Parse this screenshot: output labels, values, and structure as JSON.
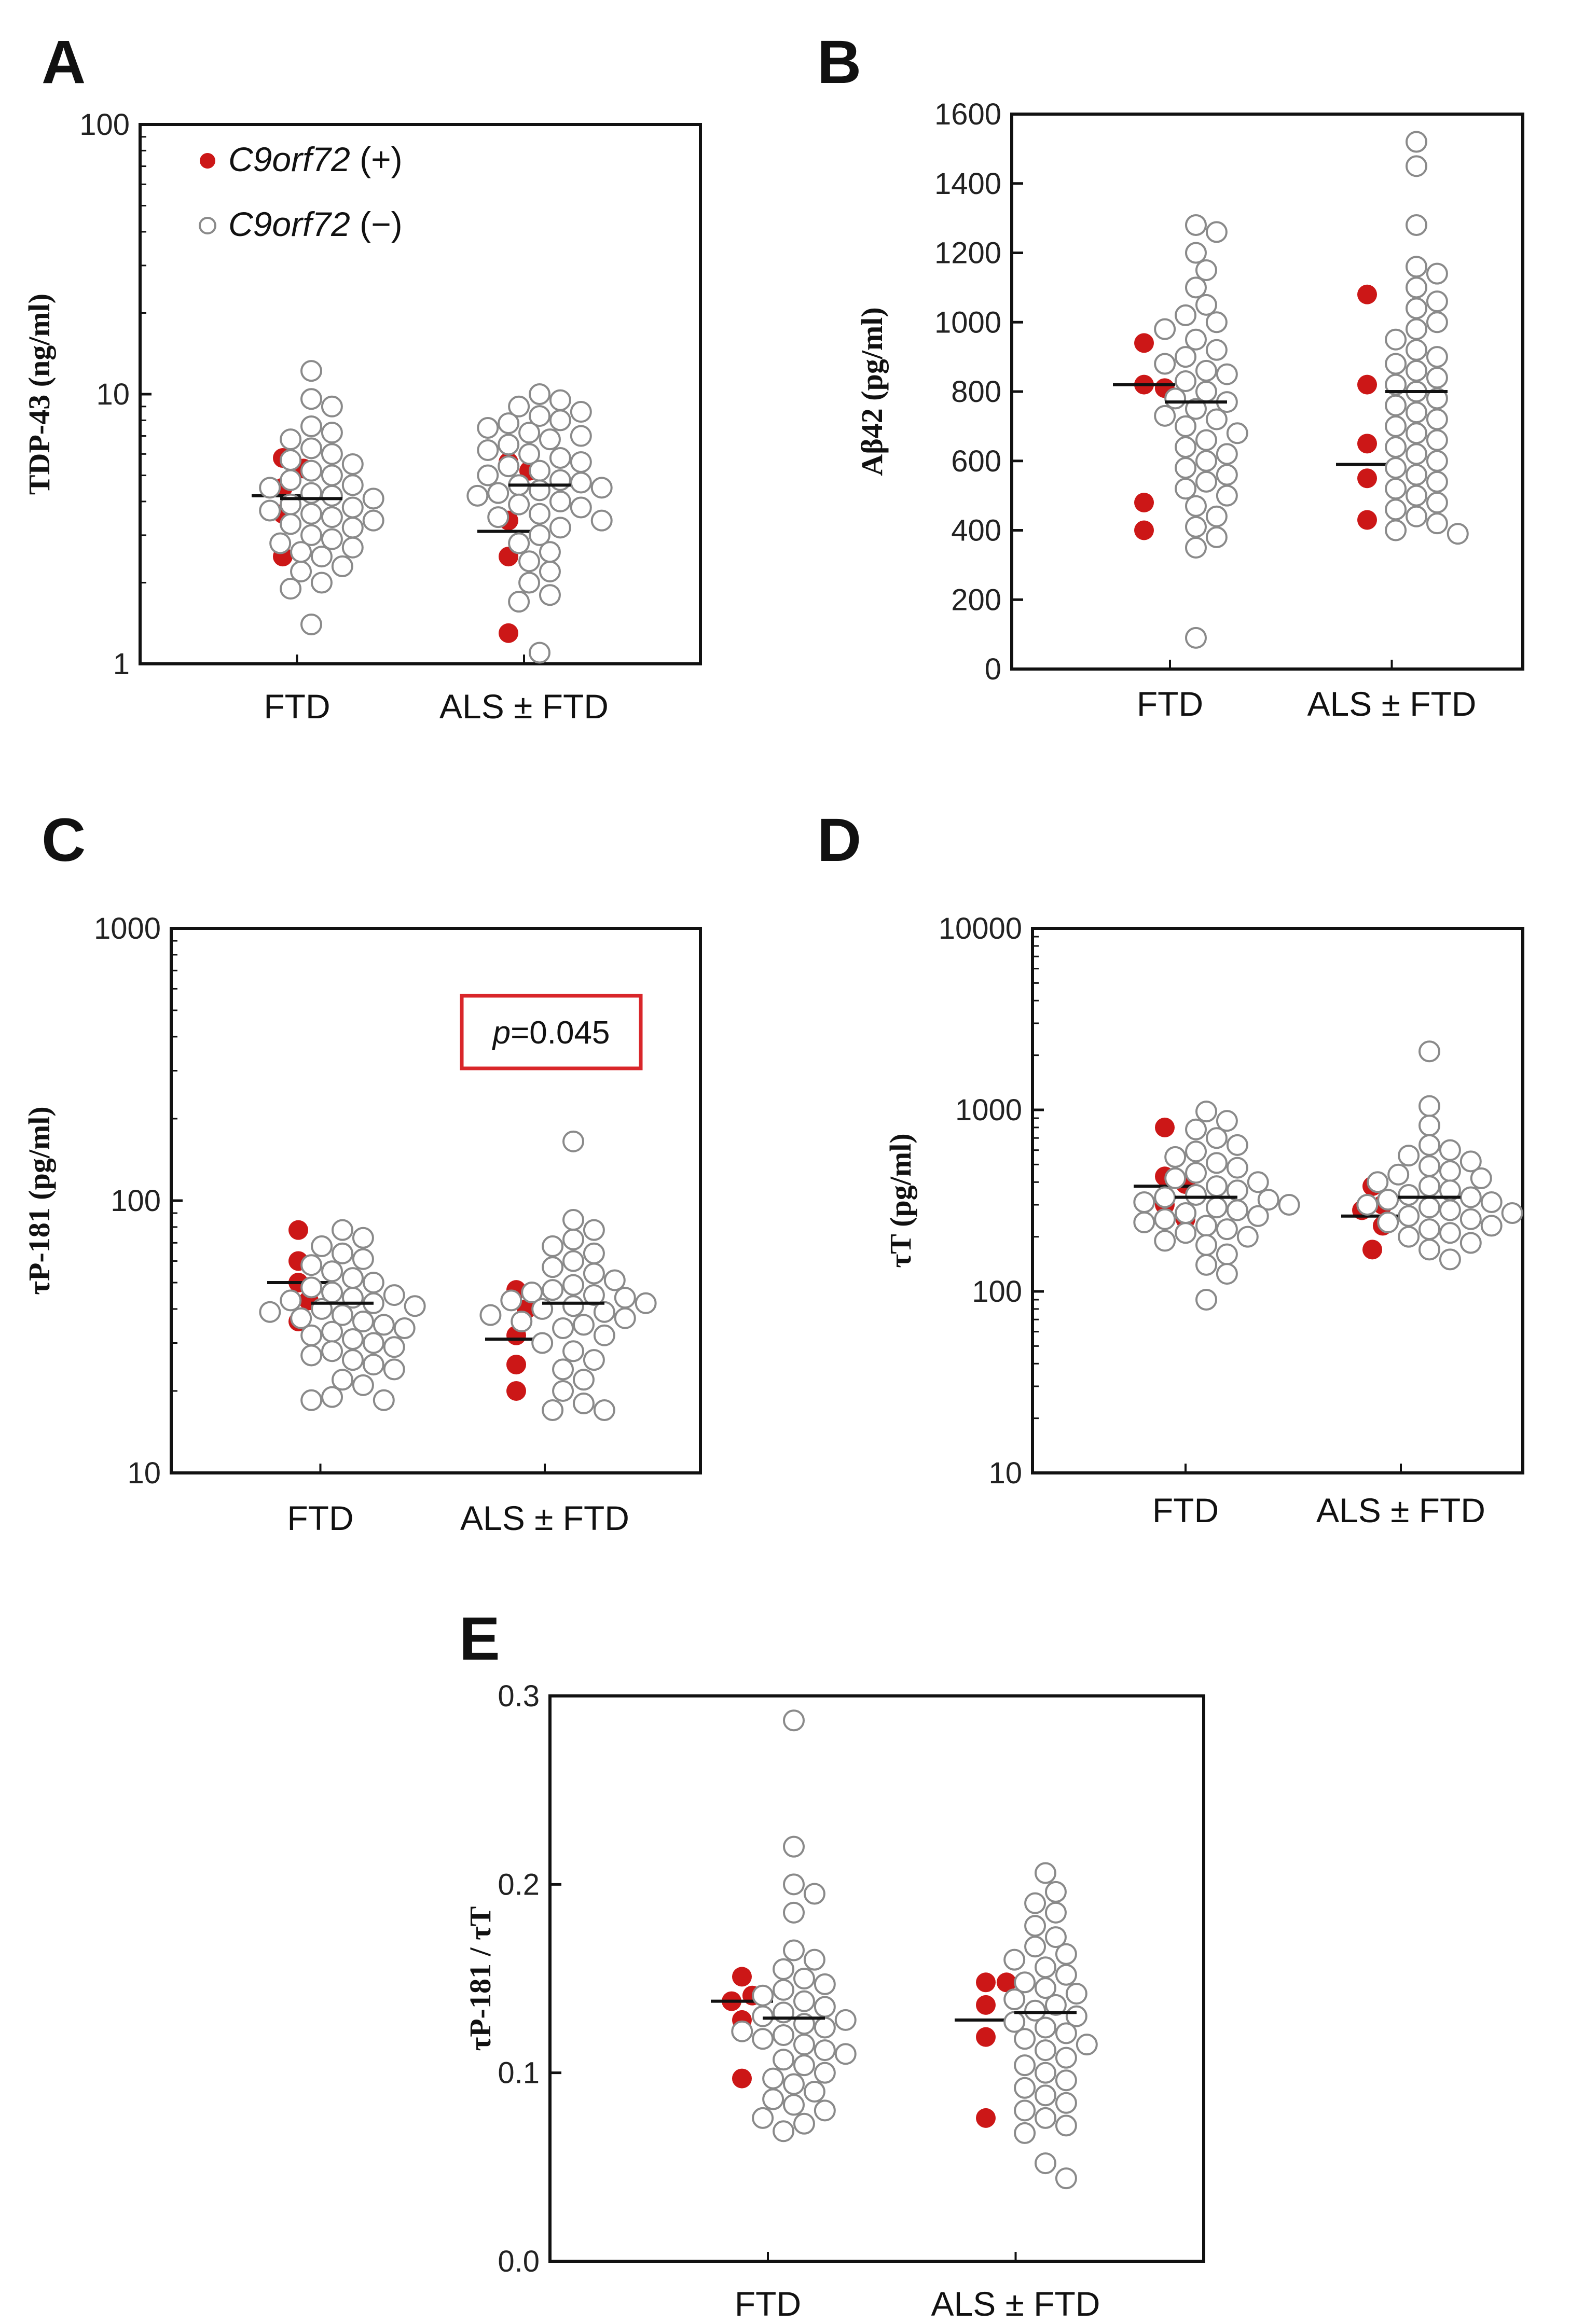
{
  "colors": {
    "positive": "#cc1717",
    "negative_fill": "#ffffff",
    "negative_stroke": "#8a8a8a",
    "median_line": "#111111",
    "p_box": "#d9262a"
  },
  "legend": {
    "items": [
      {
        "gene": "C9orf72",
        "sign": " (+)",
        "marker": "filled-red-dot"
      },
      {
        "gene": "C9orf72",
        "sign": " (−)",
        "marker": "open-gray-circle"
      }
    ]
  },
  "chart_data": [
    {
      "panel": "A",
      "type": "scatter",
      "ylabel": "TDP-43 (ng/ml)",
      "yscale": "log",
      "ylim": [
        1,
        100
      ],
      "yticks": [
        1,
        10,
        100
      ],
      "ytick_labels": [
        "1",
        "10",
        "100"
      ],
      "categories": [
        "FTD",
        "ALS ± FTD"
      ],
      "series": [
        {
          "name": "C9orf72 (+)",
          "values": [
            [
              5.8,
              5.3,
              4.5,
              3.6,
              2.5
            ],
            [
              5.6,
              5.2,
              3.4,
              2.5,
              1.3
            ]
          ],
          "medians": [
            4.2,
            3.1
          ]
        },
        {
          "name": "C9orf72 (−)",
          "values": [
            [
              12.2,
              9.6,
              9.0,
              7.6,
              7.2,
              6.8,
              6.3,
              6.0,
              5.7,
              5.5,
              5.2,
              5.0,
              4.8,
              4.6,
              4.5,
              4.3,
              4.2,
              4.1,
              3.9,
              3.8,
              3.7,
              3.6,
              3.5,
              3.4,
              3.3,
              3.2,
              3.0,
              2.9,
              2.8,
              2.7,
              2.6,
              2.5,
              2.3,
              2.2,
              2.0,
              1.9,
              1.4
            ],
            [
              10.0,
              9.5,
              9.0,
              8.6,
              8.3,
              8.0,
              7.8,
              7.5,
              7.2,
              7.0,
              6.8,
              6.5,
              6.2,
              6.0,
              5.8,
              5.6,
              5.4,
              5.2,
              5.0,
              4.8,
              4.7,
              4.6,
              4.5,
              4.4,
              4.3,
              4.2,
              4.0,
              3.9,
              3.8,
              3.6,
              3.5,
              3.4,
              3.2,
              3.0,
              2.8,
              2.6,
              2.4,
              2.2,
              2.0,
              1.8,
              1.7,
              1.1
            ]
          ],
          "medians": [
            4.1,
            4.6
          ]
        }
      ]
    },
    {
      "panel": "B",
      "type": "scatter",
      "ylabel": "Aβ42 (pg/ml)",
      "yscale": "linear",
      "ylim": [
        0,
        1600
      ],
      "yticks": [
        0,
        200,
        400,
        600,
        800,
        1000,
        1200,
        1400,
        1600
      ],
      "ytick_labels": [
        "0",
        "200",
        "400",
        "600",
        "800",
        "1000",
        "1200",
        "1400",
        "1600"
      ],
      "categories": [
        "FTD",
        "ALS ± FTD"
      ],
      "series": [
        {
          "name": "C9orf72 (+)",
          "values": [
            [
              940,
              820,
              810,
              480,
              400
            ],
            [
              1080,
              820,
              650,
              550,
              430
            ]
          ],
          "medians": [
            820,
            590
          ]
        },
        {
          "name": "C9orf72 (−)",
          "values": [
            [
              1280,
              1260,
              1200,
              1150,
              1100,
              1050,
              1020,
              1000,
              980,
              950,
              920,
              900,
              880,
              860,
              850,
              830,
              800,
              780,
              770,
              750,
              730,
              720,
              700,
              680,
              660,
              640,
              620,
              600,
              580,
              560,
              540,
              520,
              500,
              470,
              440,
              410,
              380,
              350,
              90
            ],
            [
              1520,
              1450,
              1280,
              1160,
              1140,
              1100,
              1060,
              1040,
              1000,
              980,
              950,
              920,
              900,
              880,
              860,
              840,
              820,
              800,
              780,
              760,
              740,
              720,
              700,
              680,
              660,
              640,
              620,
              600,
              580,
              560,
              540,
              520,
              500,
              480,
              460,
              440,
              420,
              400,
              390
            ]
          ],
          "medians": [
            770,
            800
          ]
        }
      ]
    },
    {
      "panel": "C",
      "type": "scatter",
      "ylabel": "τP-181 (pg/ml)",
      "yscale": "log",
      "ylim": [
        10,
        1000
      ],
      "yticks": [
        10,
        100,
        1000
      ],
      "ytick_labels": [
        "10",
        "100",
        "1000"
      ],
      "categories": [
        "FTD",
        "ALS ± FTD"
      ],
      "annotation": {
        "italic": "p",
        "rest": "=0.045"
      },
      "series": [
        {
          "name": "C9orf72 (+)",
          "values": [
            [
              78,
              60,
              50,
              43,
              36
            ],
            [
              47,
              40,
              32,
              25,
              20
            ]
          ],
          "medians": [
            50,
            31
          ]
        },
        {
          "name": "C9orf72 (−)",
          "values": [
            [
              78,
              73,
              68,
              64,
              61,
              58,
              55,
              52,
              50,
              48,
              46,
              45,
              44,
              43,
              42,
              41,
              40,
              39,
              38,
              37,
              36,
              35,
              34,
              33,
              32,
              31,
              30,
              29,
              28,
              27,
              26,
              25,
              24,
              22,
              21,
              19,
              18.5,
              18.5
            ],
            [
              165,
              85,
              78,
              72,
              68,
              64,
              60,
              57,
              54,
              51,
              49,
              47,
              46,
              45,
              44,
              43,
              42,
              41,
              40,
              39,
              38,
              37,
              36,
              35,
              34,
              32,
              30,
              28,
              26,
              24,
              22,
              20,
              18,
              17,
              17
            ]
          ],
          "medians": [
            42,
            42
          ]
        }
      ]
    },
    {
      "panel": "D",
      "type": "scatter",
      "ylabel": "τT (pg/ml)",
      "yscale": "log",
      "ylim": [
        10,
        10000
      ],
      "yticks": [
        10,
        100,
        1000,
        10000
      ],
      "ytick_labels": [
        "10",
        "100",
        "1000",
        "10000"
      ],
      "categories": [
        "FTD",
        "ALS ± FTD"
      ],
      "series": [
        {
          "name": "C9orf72 (+)",
          "values": [
            [
              800,
              430,
              390,
              300,
              250
            ],
            [
              380,
              300,
              280,
              230,
              170
            ]
          ],
          "medians": [
            380,
            260
          ]
        },
        {
          "name": "C9orf72 (−)",
          "values": [
            [
              980,
              870,
              780,
              700,
              640,
              590,
              550,
              510,
              480,
              450,
              420,
              400,
              380,
              360,
              340,
              330,
              320,
              310,
              300,
              290,
              280,
              270,
              260,
              250,
              240,
              230,
              220,
              210,
              200,
              190,
              180,
              160,
              140,
              125,
              90
            ],
            [
              2100,
              1050,
              820,
              640,
              600,
              560,
              520,
              490,
              460,
              440,
              420,
              400,
              380,
              360,
              340,
              330,
              320,
              310,
              300,
              290,
              280,
              270,
              260,
              250,
              240,
              230,
              220,
              210,
              200,
              185,
              170,
              150
            ]
          ],
          "medians": [
            330,
            330
          ]
        }
      ]
    },
    {
      "panel": "E",
      "type": "scatter",
      "ylabel": "τP-181 / τT",
      "yscale": "linear",
      "ylim": [
        0.0,
        0.3
      ],
      "yticks": [
        0.0,
        0.1,
        0.2,
        0.3
      ],
      "ytick_labels": [
        "0.0",
        "0.1",
        "0.2",
        "0.3"
      ],
      "categories": [
        "FTD",
        "ALS ± FTD"
      ],
      "series": [
        {
          "name": "C9orf72 (+)",
          "values": [
            [
              0.151,
              0.141,
              0.138,
              0.128,
              0.097
            ],
            [
              0.148,
              0.148,
              0.136,
              0.119,
              0.076
            ]
          ],
          "medians": [
            0.138,
            0.128
          ]
        },
        {
          "name": "C9orf72 (−)",
          "values": [
            [
              0.287,
              0.22,
              0.2,
              0.195,
              0.185,
              0.165,
              0.16,
              0.155,
              0.15,
              0.147,
              0.144,
              0.141,
              0.138,
              0.135,
              0.132,
              0.13,
              0.128,
              0.126,
              0.124,
              0.122,
              0.12,
              0.118,
              0.115,
              0.112,
              0.11,
              0.107,
              0.104,
              0.1,
              0.097,
              0.094,
              0.09,
              0.086,
              0.083,
              0.08,
              0.076,
              0.073,
              0.069
            ],
            [
              0.206,
              0.196,
              0.19,
              0.185,
              0.178,
              0.172,
              0.167,
              0.163,
              0.16,
              0.156,
              0.152,
              0.148,
              0.145,
              0.142,
              0.139,
              0.136,
              0.133,
              0.13,
              0.127,
              0.124,
              0.121,
              0.118,
              0.115,
              0.112,
              0.108,
              0.104,
              0.1,
              0.096,
              0.092,
              0.088,
              0.084,
              0.08,
              0.076,
              0.072,
              0.068,
              0.052,
              0.044
            ]
          ],
          "medians": [
            0.129,
            0.132
          ]
        }
      ]
    }
  ]
}
